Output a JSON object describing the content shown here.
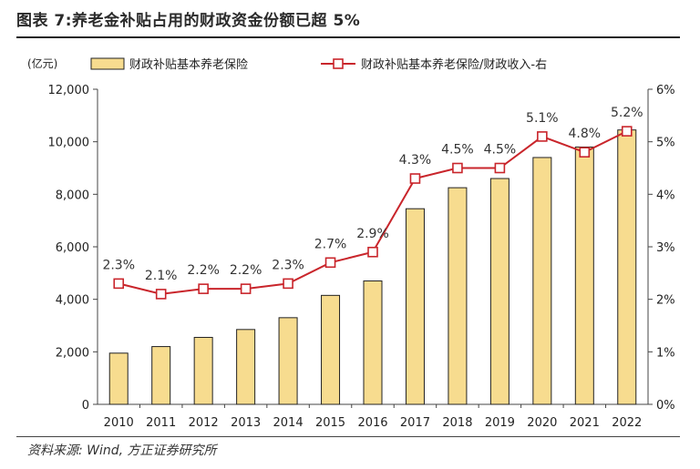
{
  "header": {
    "title": "图表 7:养老金补贴占用的财政资金份额已超 5%"
  },
  "footer": {
    "source": "资料来源: Wind, 方正证券研究所"
  },
  "chart_data": {
    "type": "bar+line",
    "unit_label": "(亿元)",
    "categories": [
      "2010",
      "2011",
      "2012",
      "2013",
      "2014",
      "2015",
      "2016",
      "2017",
      "2018",
      "2019",
      "2020",
      "2021",
      "2022"
    ],
    "series": [
      {
        "name": "财政补贴基本养老保险",
        "type": "bar",
        "axis": "left",
        "color": "#F7DC8F",
        "values": [
          1950,
          2200,
          2550,
          2850,
          3300,
          4150,
          4700,
          7450,
          8250,
          8600,
          9400,
          9800,
          10450
        ]
      },
      {
        "name": "财政补贴基本养老保险/财政收入-右",
        "type": "line",
        "axis": "right",
        "color": "#C9252B",
        "values": [
          2.3,
          2.1,
          2.2,
          2.2,
          2.3,
          2.7,
          2.9,
          4.3,
          4.5,
          4.5,
          5.1,
          4.8,
          5.2
        ],
        "labels": [
          "2.3%",
          "2.1%",
          "2.2%",
          "2.2%",
          "2.3%",
          "2.7%",
          "2.9%",
          "4.3%",
          "4.5%",
          "4.5%",
          "5.1%",
          "4.8%",
          "5.2%"
        ]
      }
    ],
    "y_left": {
      "min": 0,
      "max": 12000,
      "ticks": [
        0,
        2000,
        4000,
        6000,
        8000,
        10000,
        12000
      ],
      "tick_labels": [
        "0",
        "2,000",
        "4,000",
        "6,000",
        "8,000",
        "10,000",
        "12,000"
      ]
    },
    "y_right": {
      "min": 0,
      "max": 6,
      "ticks": [
        0,
        1,
        2,
        3,
        4,
        5,
        6
      ],
      "tick_labels": [
        "0%",
        "1%",
        "2%",
        "3%",
        "4%",
        "5%",
        "6%"
      ]
    },
    "grid": false,
    "legend_position": "top"
  }
}
